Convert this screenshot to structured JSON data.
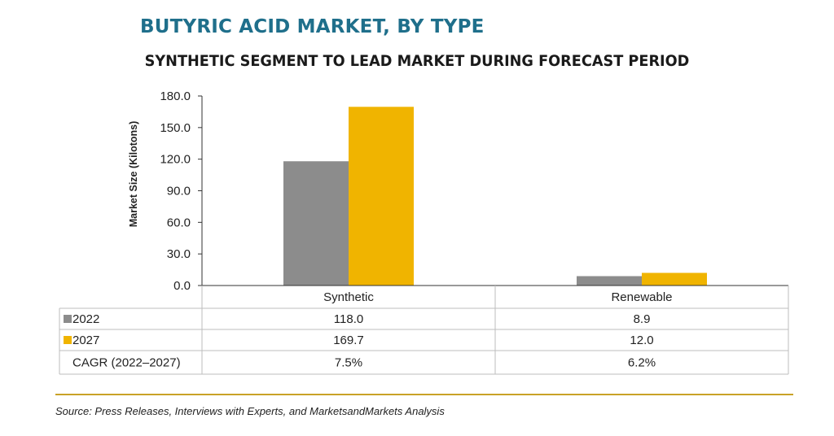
{
  "header": {
    "title": "BUTYRIC ACID MARKET, BY TYPE",
    "subtitle": "SYNTHETIC SEGMENT TO LEAD MARKET DURING FORECAST PERIOD"
  },
  "chart_data": {
    "type": "bar",
    "categories": [
      "Synthetic",
      "Renewable"
    ],
    "series": [
      {
        "name": "2022",
        "values": [
          118.0,
          8.9
        ],
        "labels": [
          "118.0",
          "8.9"
        ],
        "color": "#8c8c8c"
      },
      {
        "name": "2027",
        "values": [
          169.7,
          12.0
        ],
        "labels": [
          "169.7",
          "12.0"
        ],
        "color": "#f0b400"
      }
    ],
    "ylabel": "Market Size (Kilotons)",
    "ylim": [
      0,
      180
    ],
    "yticks": [
      "0.0",
      "30.0",
      "60.0",
      "90.0",
      "120.0",
      "150.0",
      "180.0"
    ],
    "grid": false,
    "table": {
      "extra_row": {
        "label": "CAGR (2022–2027)",
        "values": [
          "7.5%",
          "6.2%"
        ]
      }
    }
  },
  "footer": {
    "source": "Source: Press Releases, Interviews with Experts, and MarketsandMarkets Analysis"
  }
}
